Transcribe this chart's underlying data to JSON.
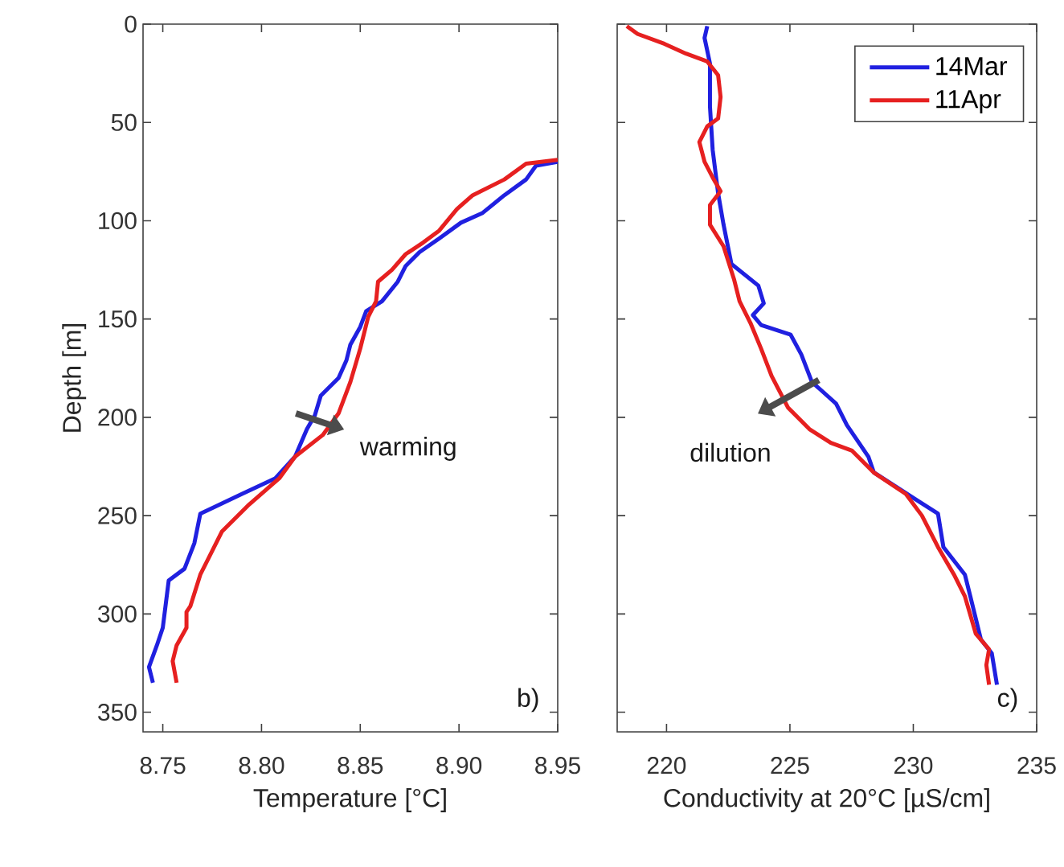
{
  "chart_data": [
    {
      "type": "line",
      "xlabel": "Temperature [°C]",
      "ylabel": "Depth [m]",
      "xlim": [
        8.74,
        8.95
      ],
      "ylim": [
        360,
        0
      ],
      "xticks": [
        8.75,
        {
          "value": 8.8,
          "label": "8.80"
        },
        8.85,
        {
          "value": 8.9,
          "label": "8.90"
        },
        8.95
      ],
      "yticks": [
        0,
        50,
        100,
        150,
        200,
        250,
        300,
        350
      ],
      "grid": false,
      "legend": false,
      "line_style": "solid",
      "marker": "none",
      "annotations": [
        "warming",
        "b)"
      ],
      "series": [
        {
          "color": "#2020e0",
          "x": [
            8.95,
            8.939,
            8.934,
            8.923,
            8.912,
            8.901,
            8.89,
            8.88,
            8.873,
            8.869,
            8.861,
            8.853,
            8.85,
            8.845,
            8.843,
            8.839,
            8.83,
            8.827,
            8.823,
            8.817,
            8.807,
            8.79,
            8.769,
            8.766,
            8.761,
            8.753,
            8.751,
            8.75,
            8.747,
            8.743,
            8.745
          ],
          "values": [
            70,
            72,
            79,
            87,
            96,
            101,
            109,
            116,
            123,
            131,
            141,
            146,
            154,
            163,
            171,
            180,
            189,
            199,
            206,
            220,
            231,
            239,
            249,
            264,
            277,
            283,
            299,
            307,
            316,
            327,
            335
          ]
        },
        {
          "color": "#e62020",
          "x": [
            8.95,
            8.934,
            8.923,
            8.907,
            8.899,
            8.89,
            8.882,
            8.873,
            8.866,
            8.859,
            8.858,
            8.854,
            8.85,
            8.845,
            8.839,
            8.831,
            8.817,
            8.809,
            8.793,
            8.78,
            8.769,
            8.764,
            8.762,
            8.762,
            8.757,
            8.755,
            8.757
          ],
          "values": [
            69,
            71,
            79,
            87,
            94,
            105,
            111,
            117,
            125,
            131,
            141,
            149,
            165,
            182,
            198,
            209,
            220,
            231,
            245,
            258,
            280,
            296,
            299,
            307,
            316,
            324,
            335
          ]
        }
      ]
    },
    {
      "type": "line",
      "xlabel": "Conductivity at 20°C [µS/cm]",
      "xlim": [
        218,
        235
      ],
      "ylim": [
        360,
        0
      ],
      "xticks": [
        220,
        225,
        230,
        235
      ],
      "yticks": [
        0,
        50,
        100,
        150,
        200,
        250,
        300,
        350
      ],
      "tick_labels": "x",
      "grid": false,
      "legend": "top right",
      "line_style": "solid",
      "marker": "none",
      "annotations": [
        "dilution",
        "c)"
      ],
      "series": [
        {
          "name": "14Mar",
          "color": "#2020e0",
          "x": [
            221.65,
            221.54,
            221.76,
            221.76,
            221.87,
            222.09,
            222.31,
            222.63,
            223.72,
            223.94,
            223.5,
            223.83,
            225.03,
            225.46,
            225.89,
            226.87,
            227.31,
            228.18,
            228.4,
            230.13,
            231.0,
            231.22,
            232.09,
            232.31,
            232.74,
            233.18,
            233.39
          ],
          "values": [
            1,
            7,
            20,
            42,
            64,
            86,
            102,
            122,
            133,
            142,
            148,
            153,
            158,
            168,
            182,
            193,
            204,
            220,
            228,
            242,
            249,
            266,
            280,
            291,
            313,
            320,
            336
          ]
        },
        {
          "name": "11Apr",
          "color": "#e62020",
          "x": [
            218.39,
            218.83,
            219.91,
            220.79,
            221.65,
            222.09,
            222.19,
            222.09,
            221.65,
            221.33,
            221.54,
            221.87,
            222.19,
            221.76,
            221.76,
            222.31,
            222.74,
            222.96,
            223.4,
            223.83,
            224.26,
            224.92,
            225.79,
            226.66,
            227.52,
            228.39,
            229.7,
            230.35,
            231.0,
            231.65,
            232.09,
            232.53,
            233.07,
            232.96,
            233.07
          ],
          "values": [
            1,
            5,
            10,
            15,
            19,
            26,
            37,
            48,
            52,
            60,
            70,
            78,
            85,
            92,
            102,
            113,
            130,
            141,
            152,
            165,
            179,
            195,
            206,
            213,
            217,
            228,
            239,
            250,
            266,
            280,
            291,
            310,
            318,
            326,
            336
          ]
        }
      ]
    }
  ]
}
